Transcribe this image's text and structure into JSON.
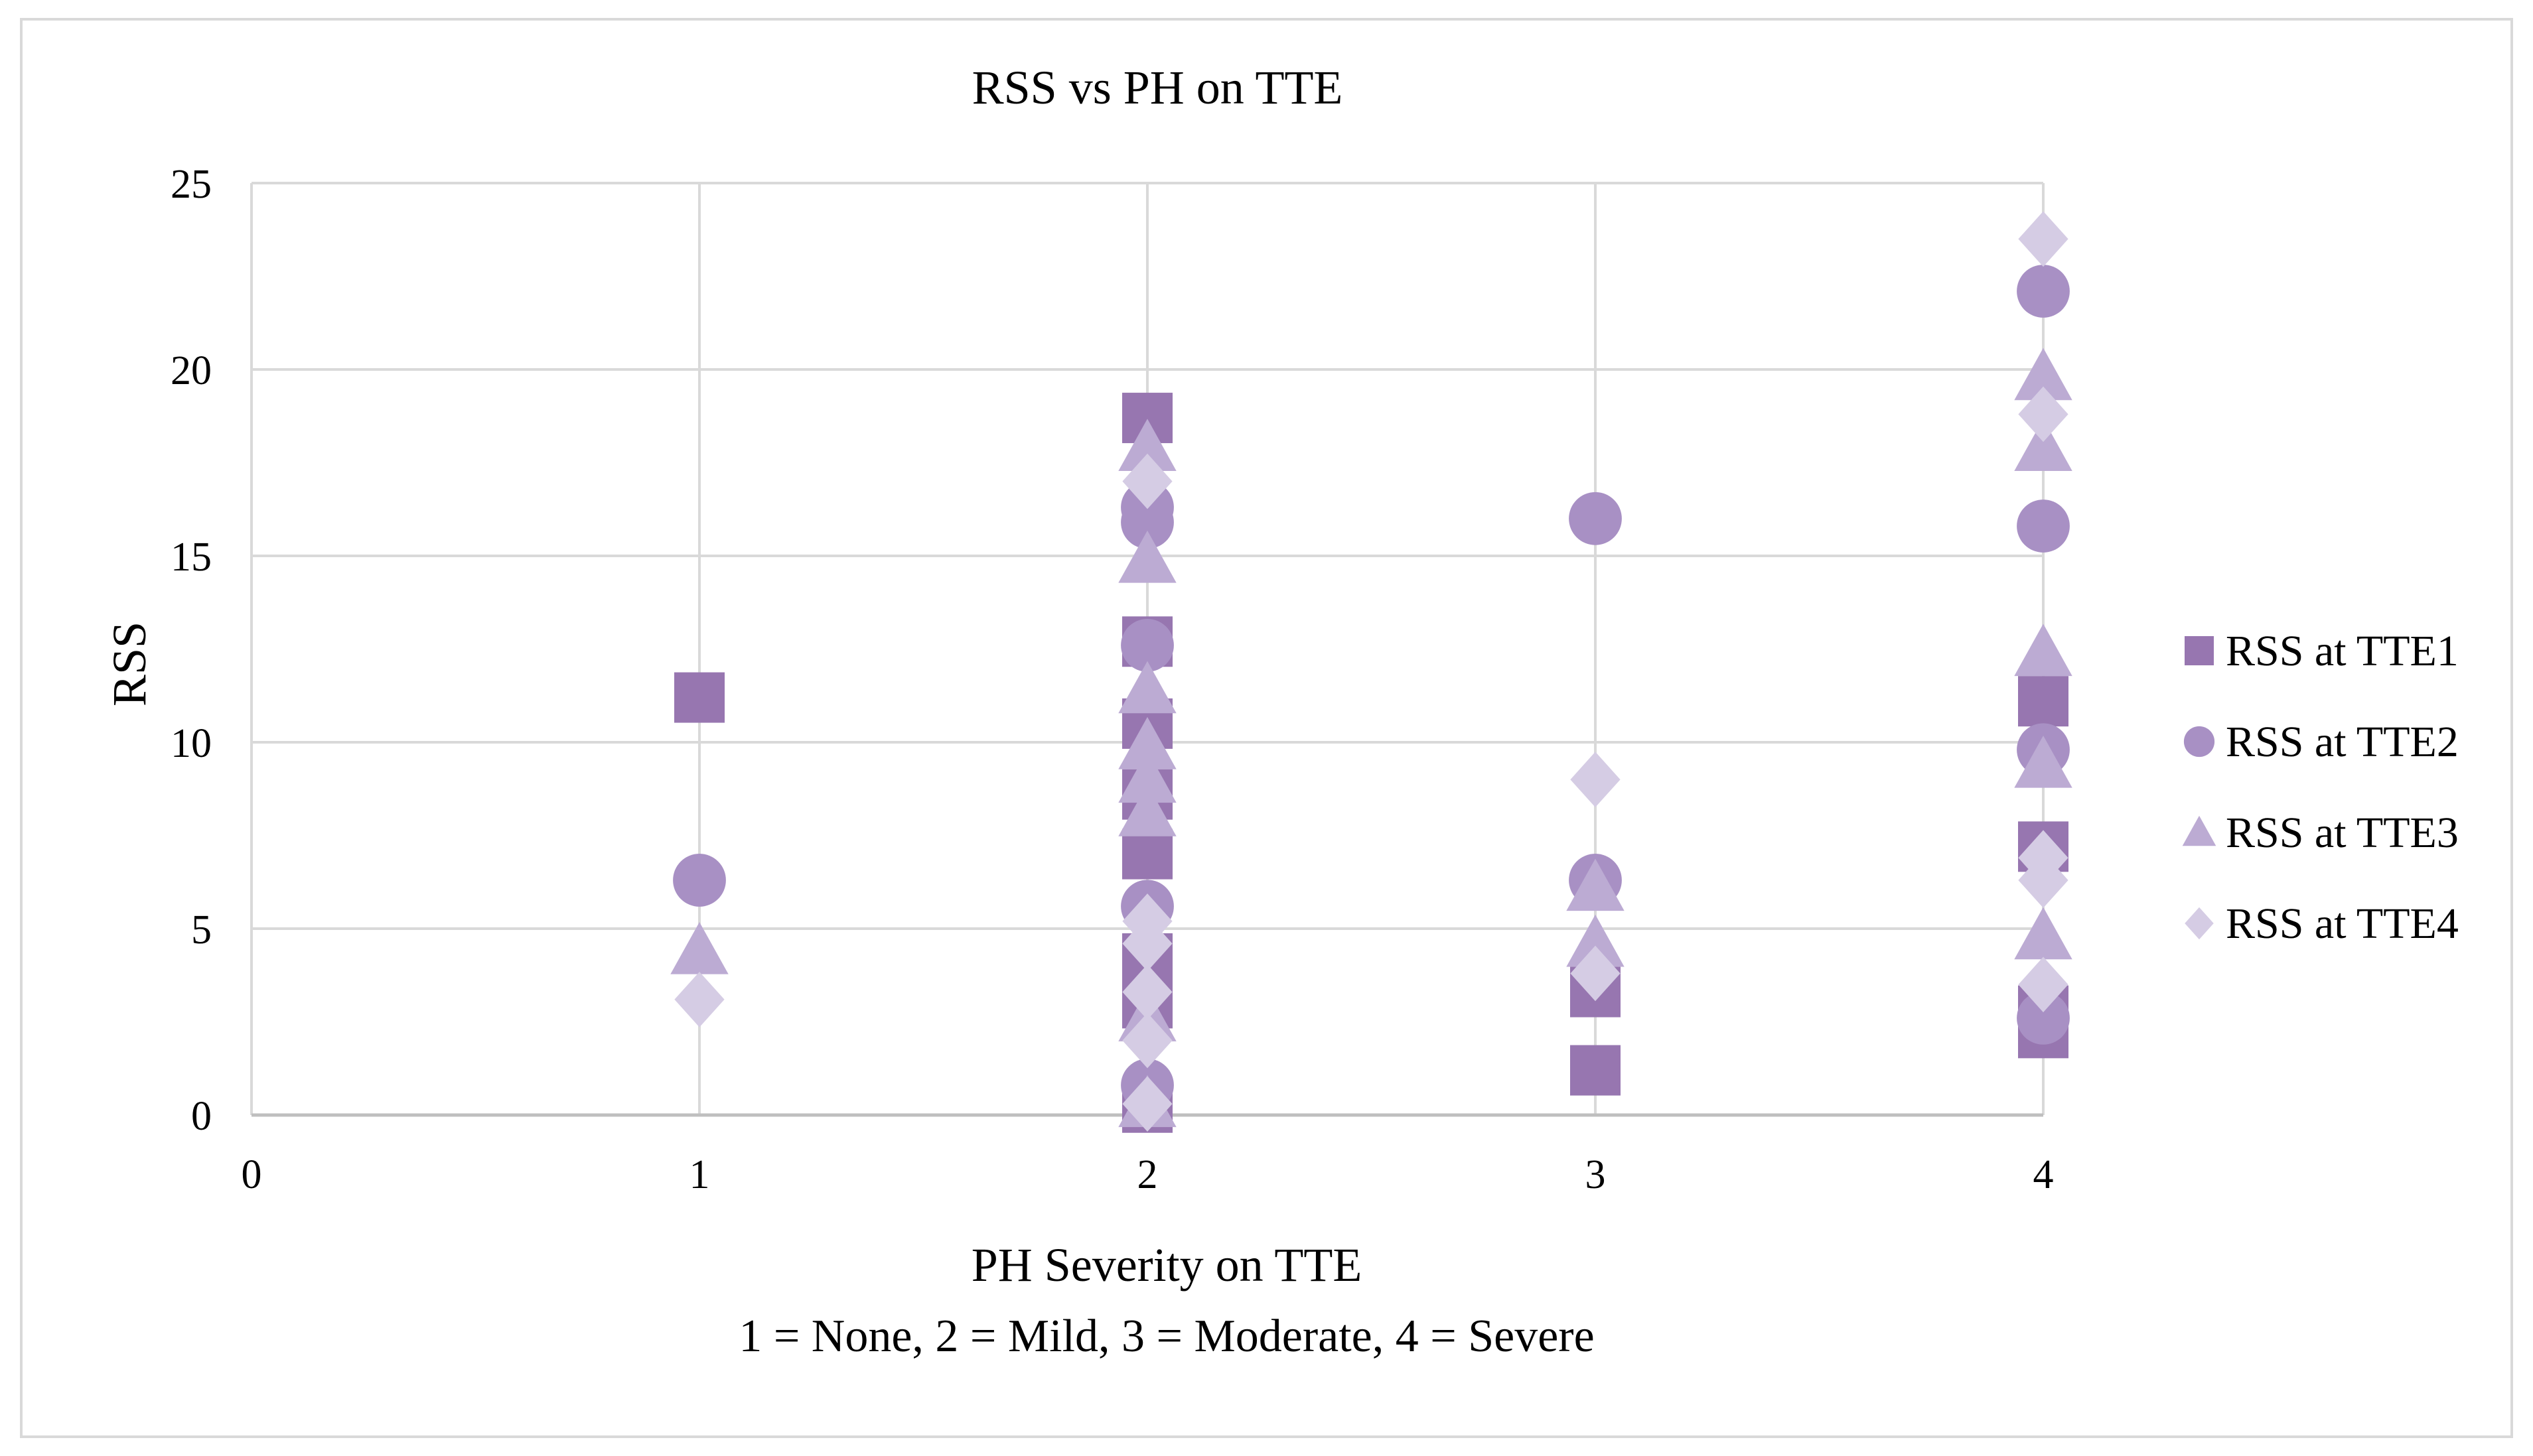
{
  "chart_data": {
    "type": "scatter",
    "title": "RSS vs PH on TTE",
    "xlabel": "PH Severity on TTE",
    "xlabel_note": "1 = None, 2 = Mild, 3 = Moderate, 4 = Severe",
    "ylabel": "RSS",
    "xlim": [
      0,
      4
    ],
    "ylim": [
      0,
      25
    ],
    "x_ticks": [
      0,
      1,
      2,
      3,
      4
    ],
    "y_ticks": [
      0,
      5,
      10,
      15,
      20,
      25
    ],
    "grid": true,
    "legend_position": "right",
    "series": [
      {
        "name": "RSS at TTE1",
        "marker": "square",
        "color": "#9776b0",
        "points": [
          [
            1,
            11.2
          ],
          [
            2,
            18.7
          ],
          [
            2,
            12.7
          ],
          [
            2,
            10.5
          ],
          [
            2,
            8.6
          ],
          [
            2,
            7.0
          ],
          [
            2,
            4.2
          ],
          [
            2,
            3.0
          ],
          [
            2,
            0.2
          ],
          [
            3,
            3.3
          ],
          [
            3,
            1.2
          ],
          [
            4,
            11.1
          ],
          [
            4,
            7.2
          ],
          [
            4,
            2.8
          ],
          [
            4,
            2.2
          ]
        ]
      },
      {
        "name": "RSS at TTE2",
        "marker": "circle",
        "color": "#a890c4",
        "points": [
          [
            1,
            6.3
          ],
          [
            2,
            16.3
          ],
          [
            2,
            15.9
          ],
          [
            2,
            12.6
          ],
          [
            2,
            5.6
          ],
          [
            2,
            0.8
          ],
          [
            3,
            16.0
          ],
          [
            3,
            6.3
          ],
          [
            4,
            22.1
          ],
          [
            4,
            15.8
          ],
          [
            4,
            9.8
          ],
          [
            4,
            2.6
          ]
        ]
      },
      {
        "name": "RSS at TTE3",
        "marker": "triangle",
        "color": "#bcabd3",
        "points": [
          [
            1,
            4.4
          ],
          [
            2,
            17.9
          ],
          [
            2,
            14.9
          ],
          [
            2,
            11.4
          ],
          [
            2,
            9.9
          ],
          [
            2,
            9.0
          ],
          [
            2,
            8.1
          ],
          [
            2,
            2.6
          ],
          [
            2,
            0.3
          ],
          [
            3,
            6.1
          ],
          [
            3,
            4.6
          ],
          [
            4,
            19.8
          ],
          [
            4,
            17.9
          ],
          [
            4,
            12.4
          ],
          [
            4,
            9.4
          ],
          [
            4,
            4.8
          ]
        ]
      },
      {
        "name": "RSS at TTE4",
        "marker": "diamond",
        "color": "#d5cce4",
        "points": [
          [
            1,
            3.1
          ],
          [
            2,
            17.0
          ],
          [
            2,
            5.2
          ],
          [
            2,
            4.6
          ],
          [
            2,
            3.3
          ],
          [
            2,
            2.0
          ],
          [
            2,
            0.3
          ],
          [
            3,
            9.0
          ],
          [
            3,
            3.8
          ],
          [
            4,
            23.5
          ],
          [
            4,
            18.8
          ],
          [
            4,
            6.9
          ],
          [
            4,
            6.3
          ],
          [
            4,
            3.5
          ]
        ]
      }
    ]
  }
}
